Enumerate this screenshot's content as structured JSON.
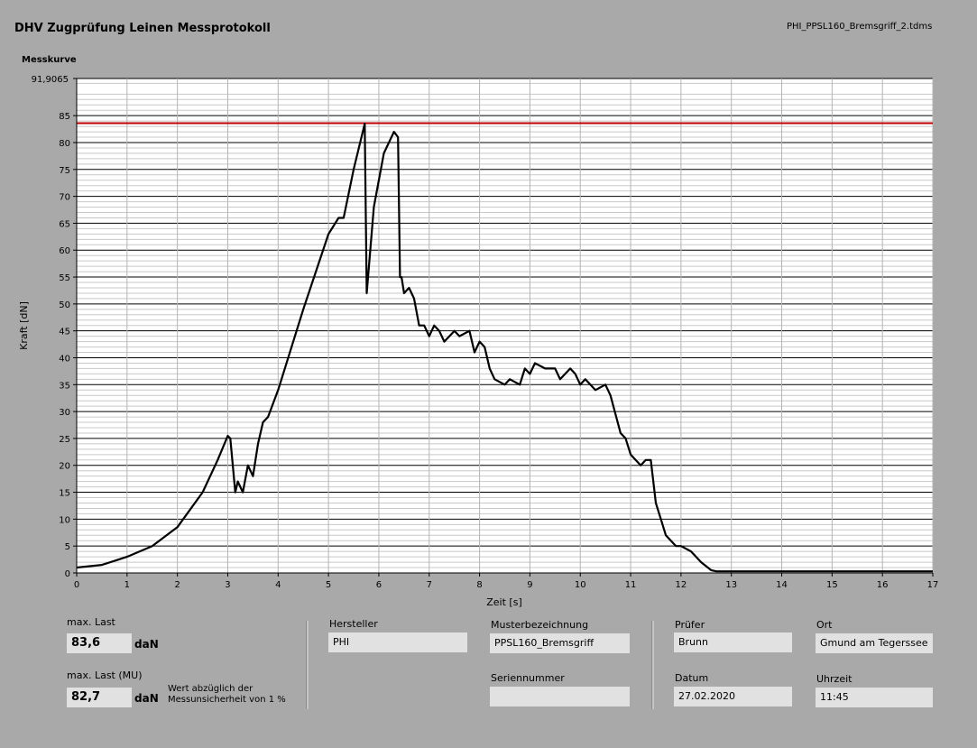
{
  "header": {
    "title": "DHV Zugprüfung Leinen Messprotokoll",
    "filename": "PHI_PPSL160_Bremsgriff_2.tdms",
    "curve_label": "Messkurve"
  },
  "chart_data": {
    "type": "line",
    "title": "",
    "xlabel": "Zeit [s]",
    "ylabel": "Kraft [dN]",
    "xlim": [
      0,
      17
    ],
    "ylim": [
      0,
      91.9065
    ],
    "y_top_label": "91,9065",
    "x_ticks": [
      0,
      1,
      2,
      3,
      4,
      5,
      6,
      7,
      8,
      9,
      10,
      11,
      12,
      13,
      14,
      15,
      16,
      17
    ],
    "y_ticks": [
      0,
      5,
      10,
      15,
      20,
      25,
      30,
      35,
      40,
      45,
      50,
      55,
      60,
      65,
      70,
      75,
      80,
      85
    ],
    "grid": true,
    "threshold_line": {
      "value": 83.6,
      "color": "#c00000"
    },
    "series": [
      {
        "color": "#000000",
        "x": [
          0,
          0.5,
          1,
          1.5,
          2,
          2.5,
          2.8,
          3.0,
          3.05,
          3.15,
          3.2,
          3.3,
          3.4,
          3.5,
          3.6,
          3.7,
          3.8,
          4.0,
          4.5,
          5.0,
          5.2,
          5.3,
          5.5,
          5.72,
          5.76,
          5.9,
          6.1,
          6.3,
          6.38,
          6.42,
          6.45,
          6.5,
          6.6,
          6.7,
          6.8,
          6.9,
          7.0,
          7.1,
          7.2,
          7.3,
          7.5,
          7.6,
          7.8,
          7.9,
          8.0,
          8.1,
          8.2,
          8.3,
          8.5,
          8.6,
          8.8,
          8.9,
          9.0,
          9.1,
          9.3,
          9.5,
          9.6,
          9.8,
          9.9,
          10.0,
          10.1,
          10.3,
          10.5,
          10.6,
          10.8,
          10.9,
          11.0,
          11.1,
          11.2,
          11.3,
          11.4,
          11.5,
          11.6,
          11.7,
          11.8,
          11.9,
          12.0,
          12.2,
          12.4,
          12.6,
          12.7,
          12.8,
          13,
          14,
          15,
          16,
          17
        ],
        "y": [
          1,
          1.5,
          3,
          5,
          8.5,
          15,
          21,
          25.5,
          25,
          15,
          17,
          15,
          20,
          18,
          24,
          28,
          29,
          34,
          49,
          63,
          66,
          66,
          75,
          83.5,
          52,
          68,
          78,
          82,
          81,
          55,
          55,
          52,
          53,
          51,
          46,
          46,
          44,
          46,
          45,
          43,
          45,
          44,
          45,
          41,
          43,
          42,
          38,
          36,
          35,
          36,
          35,
          38,
          37,
          39,
          38,
          38,
          36,
          38,
          37,
          35,
          36,
          34,
          35,
          33,
          26,
          25,
          22,
          21,
          20,
          21,
          21,
          13,
          10,
          7,
          6,
          5,
          5,
          4,
          2,
          0.5,
          0.3,
          0.3,
          0.3,
          0.3,
          0.3,
          0.3,
          0.3
        ]
      }
    ]
  },
  "footer": {
    "max_last": {
      "label": "max. Last",
      "value": "83,6",
      "unit": "daN"
    },
    "max_last_mu": {
      "label": "max. Last (MU)",
      "value": "82,7",
      "unit": "daN",
      "note": "Wert abzüglich der Messunsicherheit von 1 %"
    },
    "hersteller": {
      "label": "Hersteller",
      "value": "PHI"
    },
    "musterbezeichnung": {
      "label": "Musterbezeichnung",
      "value": "PPSL160_Bremsgriff"
    },
    "seriennummer": {
      "label": "Seriennummer",
      "value": ""
    },
    "pruefer": {
      "label": "Prüfer",
      "value": "Brunn"
    },
    "datum": {
      "label": "Datum",
      "value": "27.02.2020"
    },
    "ort": {
      "label": "Ort",
      "value": "Gmund am Tegerssee"
    },
    "uhrzeit": {
      "label": "Uhrzeit",
      "value": "11:45"
    }
  }
}
